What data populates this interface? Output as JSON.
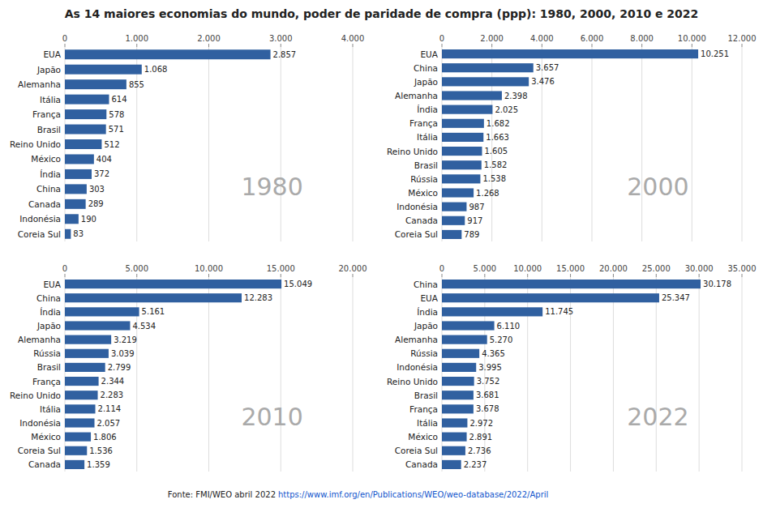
{
  "title": "As 14 maiores economias do mundo, poder de paridade de compra (ppp): 1980, 2000, 2010 e 2022",
  "annotations": [
    "Fonte: FMI/WEO abril 2022 ",
    "https://www.imf.org/en/Publications/WEO/weo-database/2022/April"
  ],
  "chart_data": [
    {
      "type": "bar",
      "orientation": "horizontal",
      "annotations": [
        "1980"
      ],
      "categories": [
        "EUA",
        "Japão",
        "Alemanha",
        "Itália",
        "França",
        "Brasil",
        "Reino Unido",
        "México",
        "Índia",
        "China",
        "Canada",
        "Indonésia",
        "Coreia Sul"
      ],
      "values": [
        2857,
        1068,
        855,
        614,
        578,
        571,
        512,
        404,
        372,
        303,
        289,
        190,
        83
      ],
      "value_labels": [
        "2.857",
        "1.068",
        "855",
        "614",
        "578",
        "571",
        "512",
        "404",
        "372",
        "303",
        "289",
        "190",
        "83"
      ],
      "data_labels": true,
      "color": "#3060A0",
      "grid": true,
      "xlim": [
        0,
        4000
      ],
      "xticks": [
        0,
        {
          "value": 1000,
          "label": "1.000"
        },
        {
          "value": 2000,
          "label": "2.000"
        },
        {
          "value": 3000,
          "label": "3.000"
        },
        {
          "value": 4000,
          "label": "4.000"
        }
      ]
    },
    {
      "type": "bar",
      "orientation": "horizontal",
      "annotations": [
        "2000"
      ],
      "categories": [
        "EUA",
        "China",
        "Japão",
        "Alemanha",
        "Índia",
        "França",
        "Itália",
        "Reino Unido",
        "Brasil",
        "Rússia",
        "México",
        "Indonésia",
        "Canada",
        "Coreia Sul"
      ],
      "values": [
        10251,
        3657,
        3476,
        2398,
        2025,
        1682,
        1663,
        1605,
        1582,
        1538,
        1268,
        987,
        917,
        789
      ],
      "value_labels": [
        "10.251",
        "3.657",
        "3.476",
        "2.398",
        "2.025",
        "1.682",
        "1.663",
        "1.605",
        "1.582",
        "1.538",
        "1.268",
        "987",
        "917",
        "789"
      ],
      "data_labels": true,
      "color": "#3060A0",
      "grid": true,
      "xlim": [
        0,
        12000
      ],
      "xticks": [
        0,
        {
          "value": 2000,
          "label": "2.000"
        },
        {
          "value": 4000,
          "label": "4.000"
        },
        {
          "value": 6000,
          "label": "6.000"
        },
        {
          "value": 8000,
          "label": "8.000"
        },
        {
          "value": 10000,
          "label": "10.000"
        },
        {
          "value": 12000,
          "label": "12.000"
        }
      ]
    },
    {
      "type": "bar",
      "orientation": "horizontal",
      "annotations": [
        "2010"
      ],
      "categories": [
        "EUA",
        "China",
        "Índia",
        "Japão",
        "Alemanha",
        "Rússia",
        "Brasil",
        "França",
        "Reino Unido",
        "Itália",
        "Indonésia",
        "México",
        "Coreia Sul",
        "Canada"
      ],
      "values": [
        15049,
        12283,
        5161,
        4534,
        3219,
        3039,
        2799,
        2344,
        2283,
        2114,
        2057,
        1806,
        1536,
        1359
      ],
      "value_labels": [
        "15.049",
        "12.283",
        "5.161",
        "4.534",
        "3.219",
        "3.039",
        "2.799",
        "2.344",
        "2.283",
        "2.114",
        "2.057",
        "1.806",
        "1.536",
        "1.359"
      ],
      "data_labels": true,
      "color": "#3060A0",
      "grid": true,
      "xlim": [
        0,
        20000
      ],
      "xticks": [
        0,
        {
          "value": 5000,
          "label": "5.000"
        },
        {
          "value": 10000,
          "label": "10.000"
        },
        {
          "value": 15000,
          "label": "15.000"
        },
        {
          "value": 20000,
          "label": "20.000"
        }
      ]
    },
    {
      "type": "bar",
      "orientation": "horizontal",
      "annotations": [
        "2022"
      ],
      "categories": [
        "China",
        "EUA",
        "Índia",
        "Japão",
        "Alemanha",
        "Rússia",
        "Indonésia",
        "Reino Unido",
        "Brasil",
        "França",
        "Itália",
        "México",
        "Coreia Sul",
        "Canada"
      ],
      "values": [
        30178,
        25347,
        11745,
        6110,
        5270,
        4365,
        3995,
        3752,
        3681,
        3678,
        2972,
        2891,
        2736,
        2237
      ],
      "value_labels": [
        "30.178",
        "25.347",
        "11.745",
        "6.110",
        "5.270",
        "4.365",
        "3.995",
        "3.752",
        "3.681",
        "3.678",
        "2.972",
        "2.891",
        "2.736",
        "2.237"
      ],
      "data_labels": true,
      "color": "#3060A0",
      "grid": true,
      "xlim": [
        0,
        35000
      ],
      "xticks": [
        0,
        {
          "value": 5000,
          "label": "5.000"
        },
        {
          "value": 10000,
          "label": "10.000"
        },
        {
          "value": 15000,
          "label": "15.000"
        },
        {
          "value": 20000,
          "label": "20.000"
        },
        {
          "value": 25000,
          "label": "25.000"
        },
        {
          "value": 30000,
          "label": "30.000"
        },
        {
          "value": 35000,
          "label": "35.000"
        }
      ]
    }
  ]
}
